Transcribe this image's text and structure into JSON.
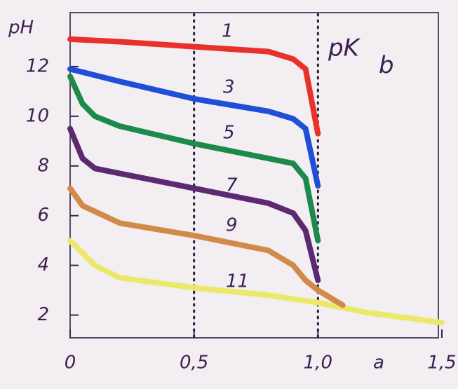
{
  "chart_data": {
    "type": "line",
    "y_label": "pH",
    "annotation": {
      "text": "pK",
      "subscript": "b"
    },
    "x_label": "a",
    "xlim": [
      0,
      1.5
    ],
    "ylim": [
      1,
      14
    ],
    "xticks": [
      0,
      {
        "value": 0.5,
        "label": "0,5"
      },
      {
        "value": 1.0,
        "label": "1,0"
      },
      {
        "value": 1.5,
        "label": "1,5"
      }
    ],
    "yticks": [
      2,
      4,
      6,
      8,
      10,
      12
    ],
    "vlines": [
      0.5,
      1.0
    ],
    "series": [
      {
        "name": "1",
        "color": "#e8312b",
        "x": [
          0,
          0.2,
          0.5,
          0.8,
          0.9,
          0.95,
          1.0
        ],
        "values": [
          13.1,
          13.0,
          12.8,
          12.6,
          12.3,
          11.9,
          9.3
        ]
      },
      {
        "name": "3",
        "color": "#1f4fd8",
        "x": [
          0,
          0.2,
          0.5,
          0.8,
          0.9,
          0.95,
          1.0
        ],
        "values": [
          11.9,
          11.4,
          10.7,
          10.2,
          9.9,
          9.5,
          7.2
        ]
      },
      {
        "name": "5",
        "color": "#1b8a4b",
        "x": [
          0,
          0.05,
          0.1,
          0.2,
          0.5,
          0.8,
          0.9,
          0.95,
          1.0
        ],
        "values": [
          11.6,
          10.5,
          10.0,
          9.6,
          8.9,
          8.3,
          8.1,
          7.5,
          5.0
        ]
      },
      {
        "name": "7",
        "color": "#5b2a70",
        "x": [
          0,
          0.05,
          0.1,
          0.2,
          0.5,
          0.8,
          0.9,
          0.95,
          1.0
        ],
        "values": [
          9.5,
          8.3,
          7.9,
          7.7,
          7.1,
          6.5,
          6.1,
          5.4,
          3.4
        ]
      },
      {
        "name": "9",
        "color": "#d18a4a",
        "x": [
          0,
          0.05,
          0.2,
          0.5,
          0.8,
          0.9,
          0.95,
          1.0,
          1.1
        ],
        "values": [
          7.1,
          6.4,
          5.7,
          5.2,
          4.6,
          4.0,
          3.4,
          3.0,
          2.4
        ]
      },
      {
        "name": "11",
        "color": "#ece86c",
        "x": [
          0,
          0.1,
          0.2,
          0.5,
          0.8,
          1.0,
          1.2,
          1.5
        ],
        "values": [
          5.0,
          4.0,
          3.5,
          3.1,
          2.8,
          2.5,
          2.1,
          1.7
        ]
      }
    ]
  }
}
